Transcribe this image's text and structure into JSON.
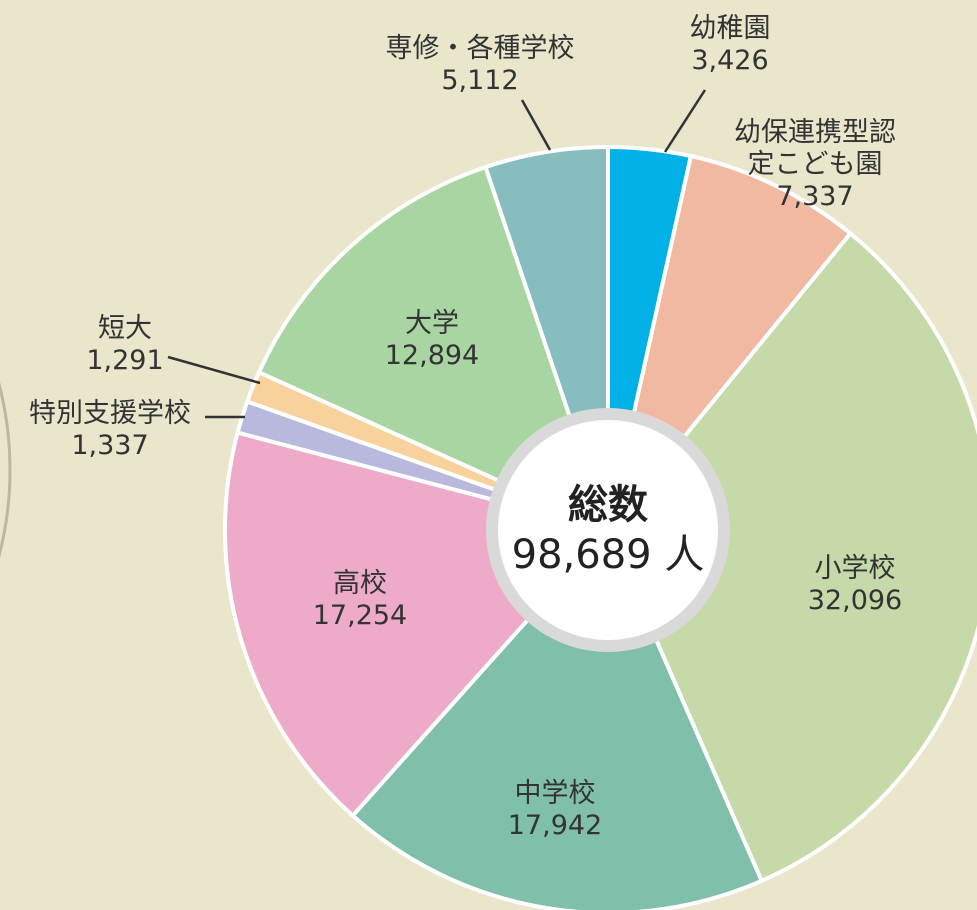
{
  "chart_data": {
    "type": "pie",
    "center_title": "総数",
    "center_label": "98,689 人",
    "categories": [
      "幼稚園",
      "幼保連携型認定こども園",
      "小学校",
      "中学校",
      "高校",
      "特別支援学校",
      "短大",
      "大学",
      "専修・各種学校"
    ],
    "values": [
      3426,
      7337,
      32096,
      17942,
      17254,
      1337,
      1291,
      12894,
      5112
    ],
    "value_labels": [
      "3,426",
      "7,337",
      "32,096",
      "17,942",
      "17,254",
      "1,337",
      "1,291",
      "12,894",
      "5,112"
    ],
    "colors": [
      "#00b0e6",
      "#f2b9a2",
      "#c6d9a8",
      "#80c0ab",
      "#eeabc9",
      "#b8b9dd",
      "#f8d29c",
      "#a8d5a2",
      "#87bdbe"
    ]
  }
}
